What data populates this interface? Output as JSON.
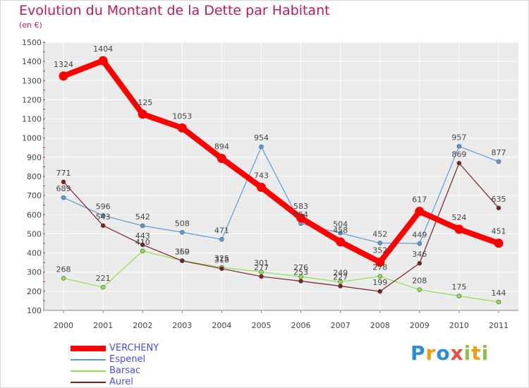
{
  "header": {
    "title": "Evolution du Montant de la Dette par Habitant",
    "unit": "(en €)"
  },
  "logo": {
    "text": "Proxiti",
    "letters": [
      "P",
      "r",
      "o",
      "x",
      "i",
      "t",
      "i"
    ],
    "colors": [
      "#2a8fd8",
      "#f39c12",
      "#2a8fd8",
      "#e74c3c",
      "#8bc34a",
      "#f39c12",
      "#8bc34a"
    ]
  },
  "chart_data": {
    "type": "line",
    "title": "Evolution du Montant de la Dette par Habitant",
    "ylabel": "(en €)",
    "xlabel": "",
    "ylim": [
      100,
      1500
    ],
    "yticks": [
      100,
      200,
      300,
      400,
      500,
      600,
      700,
      800,
      900,
      1000,
      1100,
      1200,
      1300,
      1400,
      1500
    ],
    "grid": true,
    "categories": [
      "2000",
      "2001",
      "2002",
      "2003",
      "2004",
      "2005",
      "2006",
      "2007",
      "2008",
      "2009",
      "2010",
      "2011"
    ],
    "series": [
      {
        "name": "VERCHENY",
        "color": "#ff0000",
        "thick": true,
        "values": [
          1324,
          1404,
          1125,
          1053,
          894,
          743,
          583,
          458,
          352,
          617,
          524,
          451
        ]
      },
      {
        "name": "Espenel",
        "color": "#5b9bd5",
        "thick": false,
        "values": [
          689,
          596,
          542,
          508,
          471,
          954,
          554,
          504,
          452,
          449,
          957,
          877
        ]
      },
      {
        "name": "Barsac",
        "color": "#8ee04a",
        "thick": false,
        "values": [
          268,
          221,
          410,
          360,
          325,
          301,
          276,
          249,
          278,
          208,
          175,
          144
        ]
      },
      {
        "name": "Aurel",
        "color": "#7b1f1f",
        "thick": false,
        "values": [
          771,
          543,
          443,
          359,
          318,
          277,
          253,
          227,
          199,
          346,
          869,
          635
        ]
      }
    ]
  }
}
